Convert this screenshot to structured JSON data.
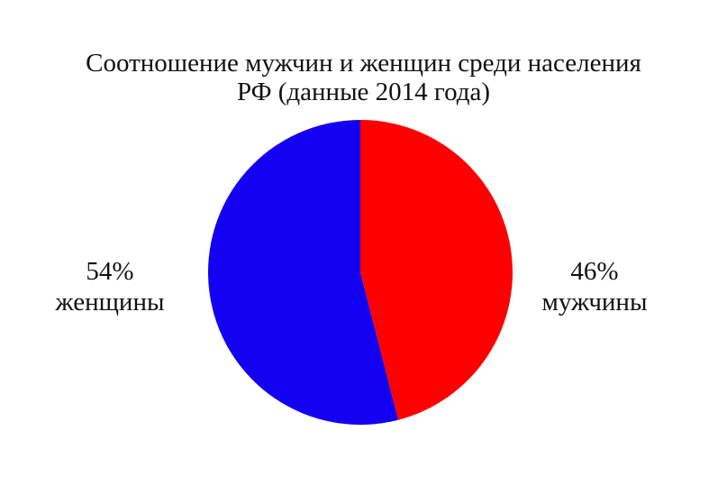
{
  "chart_data": {
    "type": "pie",
    "title_line1": "Соотношение мужчин и женщин среди населения",
    "title_line2": "РФ (данные 2014 года)",
    "slices": [
      {
        "label": "мужчины",
        "value": 46,
        "value_label": "46%",
        "color": "#ff0000"
      },
      {
        "label": "женщины",
        "value": 54,
        "value_label": "54%",
        "color": "#1400f0"
      }
    ],
    "start_angle": "12 o'clock",
    "direction": "clockwise",
    "legend": "none"
  }
}
